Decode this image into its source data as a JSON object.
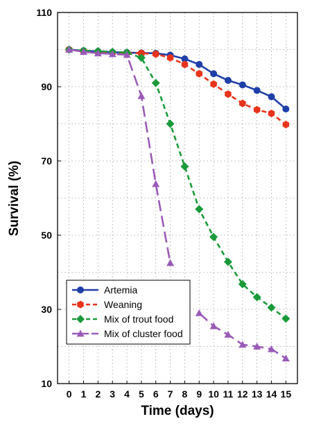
{
  "chart_data": {
    "type": "line",
    "xlabel": "Time (days)",
    "ylabel": "Survival (%)",
    "x": [
      0,
      1,
      2,
      3,
      4,
      5,
      6,
      7,
      8,
      9,
      10,
      11,
      12,
      13,
      14,
      15
    ],
    "xlim": [
      -0.8,
      15.8
    ],
    "ylim": [
      10,
      110
    ],
    "yticks": [
      10,
      30,
      50,
      70,
      90,
      110
    ],
    "grid": true,
    "legend_position": "bottom-left",
    "series": [
      {
        "name": "Artemia",
        "color": "#1f3fa8",
        "dash": "solid",
        "marker": "circle",
        "values": [
          100,
          99.7,
          99.5,
          99.3,
          99.2,
          99.1,
          99.0,
          98.5,
          97.5,
          96.0,
          93.5,
          91.7,
          90.5,
          89.0,
          87.3,
          84.0
        ]
      },
      {
        "name": "Weaning",
        "color": "#e8341c",
        "dash": "dashed",
        "marker": "hexagon",
        "values": [
          100,
          99.6,
          99.4,
          99.2,
          99.1,
          99.0,
          98.8,
          97.8,
          96.0,
          93.5,
          90.7,
          88.0,
          85.5,
          83.8,
          82.8,
          79.8
        ]
      },
      {
        "name": "Mix of trout food",
        "color": "#1a9a3a",
        "dash": "dashed",
        "marker": "diamond",
        "values": [
          100,
          99.7,
          99.6,
          99.4,
          99.2,
          97.8,
          91.0,
          80.0,
          68.5,
          57.0,
          49.5,
          42.8,
          36.8,
          33.3,
          30.5,
          27.5
        ]
      },
      {
        "name": "Mix of cluster food",
        "color": "#9a5bb8",
        "dash": "long-dash",
        "marker": "triangle",
        "values": [
          100,
          99.4,
          99.0,
          98.8,
          98.6,
          87.5,
          63.8,
          42.5,
          null,
          29.0,
          25.5,
          23.2,
          20.5,
          20.0,
          19.3,
          16.8
        ]
      }
    ]
  }
}
